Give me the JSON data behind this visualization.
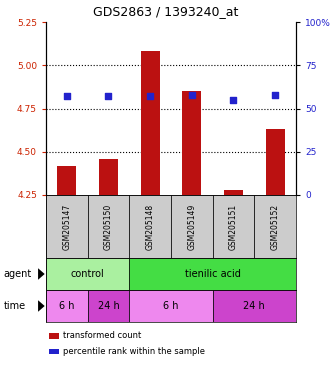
{
  "title": "GDS2863 / 1393240_at",
  "samples": [
    "GSM205147",
    "GSM205150",
    "GSM205148",
    "GSM205149",
    "GSM205151",
    "GSM205152"
  ],
  "bar_values": [
    4.42,
    4.46,
    5.08,
    4.85,
    4.28,
    4.63
  ],
  "bar_base": 4.25,
  "percentile_values": [
    57,
    57,
    57,
    58,
    55,
    58
  ],
  "ylim_left": [
    4.25,
    5.25
  ],
  "ylim_right": [
    0,
    100
  ],
  "yticks_left": [
    4.25,
    4.5,
    4.75,
    5.0,
    5.25
  ],
  "yticks_right": [
    0,
    25,
    50,
    75,
    100
  ],
  "ytick_labels_right": [
    "0",
    "25",
    "50",
    "75",
    "100%"
  ],
  "bar_color": "#bb1111",
  "dot_color": "#2222cc",
  "grid_color": "black",
  "agent_control_color": "#aaf0a0",
  "agent_tienilic_color": "#44dd44",
  "time_6h_color": "#ee88ee",
  "time_24h_color": "#cc44cc",
  "sample_bg_color": "#cccccc",
  "legend_bar_label": "transformed count",
  "legend_dot_label": "percentile rank within the sample",
  "tick_label_color_left": "#cc2200",
  "tick_label_color_right": "#2222cc"
}
